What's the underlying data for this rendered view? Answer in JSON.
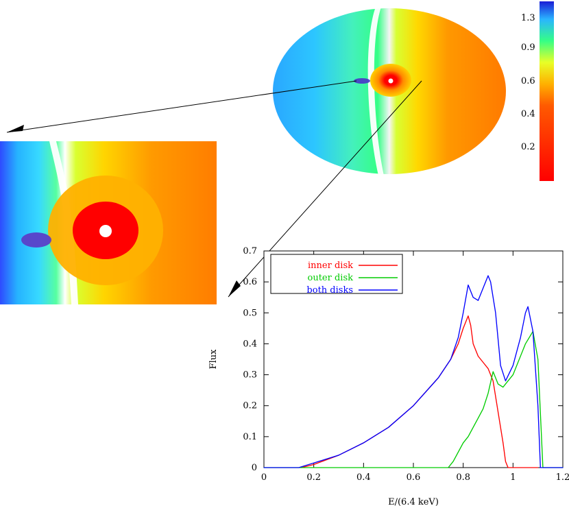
{
  "figure": {
    "colorbar": {
      "tick_labels": [
        "1.3",
        "0.9",
        "0.6",
        "0.4",
        "0.2"
      ],
      "colors": [
        "#1b1dd6",
        "#2ab5ff",
        "#35ff86",
        "#e8ff27",
        "#ffb000",
        "#ff5a00",
        "#ff0000"
      ]
    },
    "arrows": {
      "zoom_label": "",
      "spectrum_label": ""
    }
  },
  "chart_data": {
    "type": "line",
    "title": "",
    "xlabel": "E/(6.4 keV)",
    "ylabel": "Flux",
    "xlim": [
      0,
      1.2
    ],
    "ylim": [
      0,
      0.7
    ],
    "x_ticks": [
      "0",
      "0.2",
      "0.4",
      "0.6",
      "0.8",
      "1",
      "1.2"
    ],
    "y_ticks": [
      "0",
      "0.1",
      "0.2",
      "0.3",
      "0.4",
      "0.5",
      "0.6",
      "0.7"
    ],
    "legend": {
      "position": "top-left",
      "entries": [
        {
          "name": "inner disk",
          "color": "#ff0000"
        },
        {
          "name": "outer disk",
          "color": "#00cc00"
        },
        {
          "name": "both disks",
          "color": "#0000ff"
        }
      ]
    },
    "series": [
      {
        "name": "inner disk",
        "color": "#ff0000",
        "x": [
          0.15,
          0.2,
          0.3,
          0.4,
          0.5,
          0.6,
          0.7,
          0.75,
          0.78,
          0.8,
          0.82,
          0.83,
          0.84,
          0.86,
          0.88,
          0.9,
          0.92,
          0.94,
          0.96,
          0.97,
          0.98,
          1.0,
          1.1
        ],
        "y": [
          0.0,
          0.01,
          0.04,
          0.08,
          0.13,
          0.2,
          0.29,
          0.35,
          0.4,
          0.45,
          0.49,
          0.46,
          0.4,
          0.36,
          0.34,
          0.32,
          0.28,
          0.18,
          0.08,
          0.02,
          0.0,
          0.0,
          0.0
        ]
      },
      {
        "name": "outer disk",
        "color": "#00cc00",
        "x": [
          0.0,
          0.74,
          0.76,
          0.78,
          0.8,
          0.82,
          0.84,
          0.86,
          0.88,
          0.9,
          0.92,
          0.94,
          0.96,
          0.97,
          1.0,
          1.05,
          1.08,
          1.1,
          1.12,
          1.2
        ],
        "y": [
          0.0,
          0.0,
          0.02,
          0.05,
          0.08,
          0.1,
          0.13,
          0.16,
          0.19,
          0.24,
          0.31,
          0.27,
          0.26,
          0.27,
          0.3,
          0.4,
          0.44,
          0.35,
          0.0,
          0.0
        ]
      },
      {
        "name": "both disks",
        "color": "#0000ff",
        "x": [
          0.0,
          0.14,
          0.2,
          0.3,
          0.4,
          0.5,
          0.6,
          0.7,
          0.75,
          0.78,
          0.8,
          0.82,
          0.84,
          0.86,
          0.88,
          0.9,
          0.91,
          0.93,
          0.95,
          0.97,
          1.0,
          1.03,
          1.05,
          1.06,
          1.08,
          1.1,
          1.11,
          1.2
        ],
        "y": [
          0.0,
          0.0,
          0.015,
          0.04,
          0.08,
          0.13,
          0.2,
          0.29,
          0.35,
          0.42,
          0.5,
          0.59,
          0.55,
          0.54,
          0.58,
          0.62,
          0.6,
          0.5,
          0.33,
          0.28,
          0.33,
          0.42,
          0.5,
          0.52,
          0.44,
          0.2,
          0.0,
          0.0
        ]
      }
    ]
  }
}
